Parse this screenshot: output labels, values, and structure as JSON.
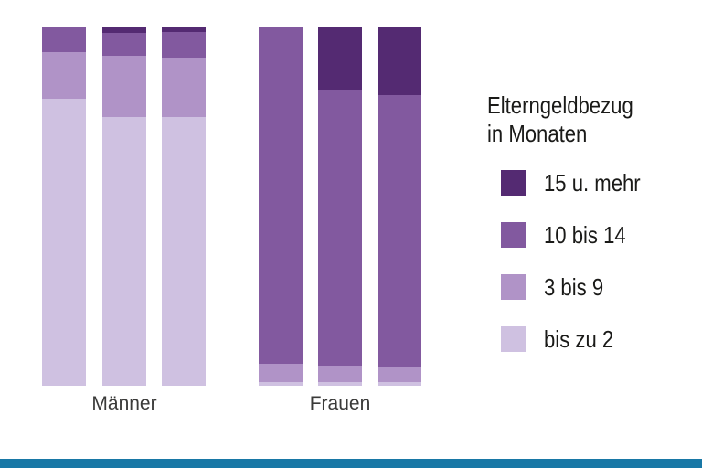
{
  "chart_data": {
    "type": "bar",
    "subtype": "stacked-percentage-columns",
    "orientation": "vertical",
    "axis_visible": false,
    "grid": false,
    "unit": "percent",
    "series_order_top_to_bottom": [
      "15 u. mehr",
      "10 bis 14",
      "3 bis 9",
      "bis zu 2"
    ],
    "legend": {
      "position": "right",
      "title_line1": "Elterngeldbezug",
      "title_line2": "in Monaten",
      "items": [
        {
          "label": "15 u. mehr",
          "color": "#542a72"
        },
        {
          "label": "10 bis 14",
          "color": "#82599f"
        },
        {
          "label": "3 bis 9",
          "color": "#b093c7"
        },
        {
          "label": "bis zu 2",
          "color": "#cfc1e1"
        }
      ]
    },
    "groups": [
      {
        "label": "Männer",
        "bars": [
          {
            "segments": [
              0,
              7,
              13,
              80
            ]
          },
          {
            "segments": [
              1.5,
              6.5,
              17,
              75
            ]
          },
          {
            "segments": [
              1.3,
              7.2,
              16.5,
              75
            ]
          }
        ]
      },
      {
        "label": "Frauen",
        "bars": [
          {
            "segments": [
              0,
              94,
              5,
              1
            ]
          },
          {
            "segments": [
              17.5,
              77,
              4.5,
              1
            ]
          },
          {
            "segments": [
              19,
              76,
              4,
              1
            ]
          }
        ]
      }
    ]
  },
  "footer": {
    "accent_bar_color": "#1878a6"
  }
}
